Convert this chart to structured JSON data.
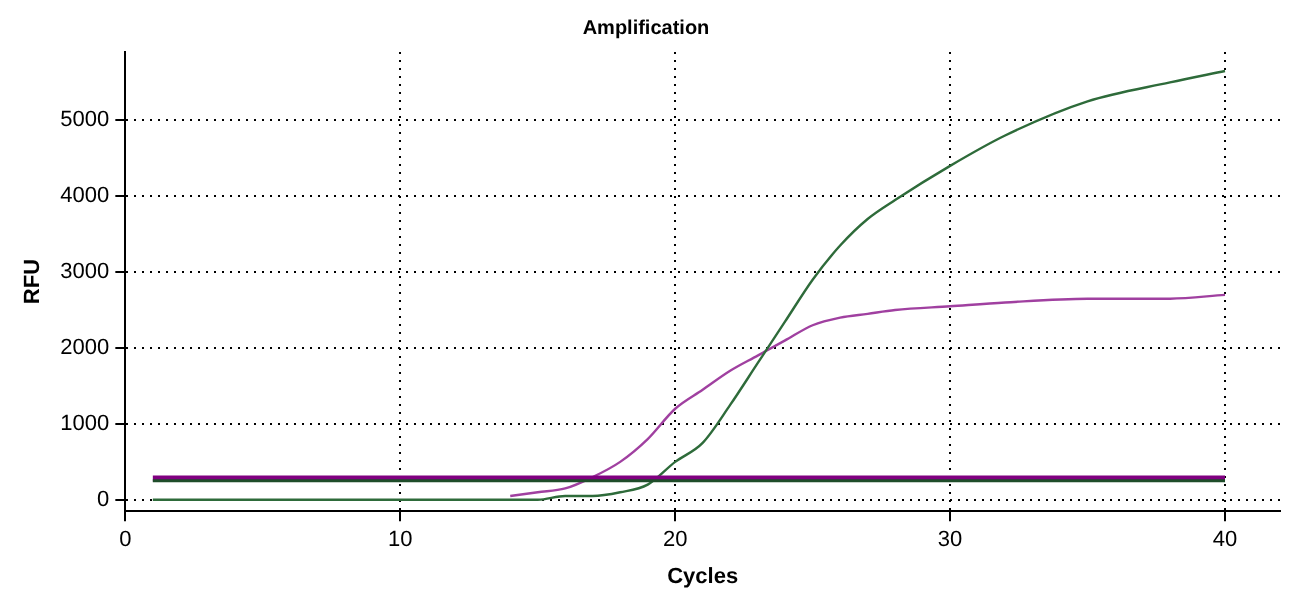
{
  "chart_data": {
    "type": "line",
    "title": "Amplification",
    "xlabel": "Cycles",
    "ylabel": "RFU",
    "xlim": [
      0,
      42
    ],
    "xticks": [
      0,
      10,
      20,
      30,
      40
    ],
    "ylim": [
      -150,
      5900
    ],
    "yticks": [
      0,
      1000,
      2000,
      3000,
      4000,
      5000
    ],
    "grid": true,
    "legend": false,
    "marker": "none",
    "line_style": "solid",
    "x": [
      1,
      5,
      10,
      13,
      14,
      15,
      16,
      17,
      18,
      19,
      20,
      21,
      22,
      23,
      24,
      25,
      26,
      27,
      28,
      30,
      32,
      35,
      38,
      40
    ],
    "series": [
      {
        "color": "#2e6b3a",
        "values": [
          0,
          0,
          0,
          0,
          0,
          0,
          50,
          50,
          100,
          200,
          500,
          750,
          1250,
          1800,
          2350,
          2900,
          3350,
          3700,
          3950,
          4400,
          4800,
          5250,
          5500,
          5650
        ]
      },
      {
        "color": "#a040a0",
        "values": [
          null,
          null,
          null,
          null,
          50,
          100,
          150,
          300,
          500,
          800,
          1200,
          1450,
          1700,
          1900,
          2100,
          2300,
          2400,
          2450,
          2500,
          2550,
          2600,
          2650,
          2650,
          2700
        ]
      }
    ],
    "ref_lines": [
      {
        "axis": "y",
        "value": 280,
        "color": "#800080"
      },
      {
        "axis": "y",
        "value": 250,
        "color": "#1f4d2a"
      }
    ]
  }
}
